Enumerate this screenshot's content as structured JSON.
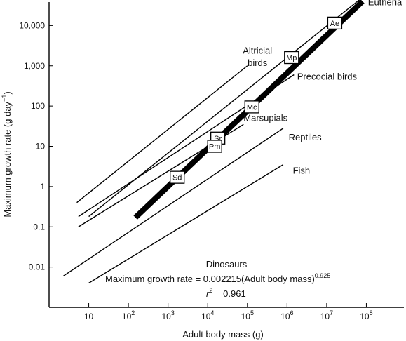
{
  "chart_data": {
    "type": "line",
    "xscale": "log",
    "yscale": "log",
    "xlabel": "Adult body mass (g)",
    "ylabel": "Maximum growth rate (g day",
    "ylabel_sup": "−1",
    "ylabel_close": ")",
    "xlim": [
      1,
      1000000000
    ],
    "ylim": [
      0.001,
      100000
    ],
    "x_ticks": [
      {
        "value": 10,
        "base": "10",
        "exp": ""
      },
      {
        "value": 100,
        "base": "10",
        "exp": "2"
      },
      {
        "value": 1000,
        "base": "10",
        "exp": "3"
      },
      {
        "value": 10000,
        "base": "10",
        "exp": "4"
      },
      {
        "value": 100000,
        "base": "10",
        "exp": "5"
      },
      {
        "value": 1000000,
        "base": "10",
        "exp": "6"
      },
      {
        "value": 10000000,
        "base": "10",
        "exp": "7"
      },
      {
        "value": 100000000,
        "base": "10",
        "exp": "8"
      }
    ],
    "y_ticks": [
      {
        "value": 0.01,
        "label": "0.01"
      },
      {
        "value": 0.1,
        "label": "0.1"
      },
      {
        "value": 1,
        "label": "1"
      },
      {
        "value": 10,
        "label": "10"
      },
      {
        "value": 100,
        "label": "100"
      },
      {
        "value": 1000,
        "label": "1,000"
      },
      {
        "value": 10000,
        "label": "10,000"
      }
    ],
    "series": [
      {
        "name": "Eutheria",
        "x": [
          10,
          100000000
        ],
        "y": [
          0.18,
          60000
        ],
        "width": 1.4
      },
      {
        "name": "Altricial birds",
        "x": [
          5,
          100000
        ],
        "y": [
          0.4,
          1000
        ],
        "width": 1.4
      },
      {
        "name": "Precocial birds",
        "x": [
          5.5,
          1500000
        ],
        "y": [
          0.18,
          600
        ],
        "width": 1.4
      },
      {
        "name": "Marsupials",
        "x": [
          5.5,
          80000
        ],
        "y": [
          0.1,
          35
        ],
        "width": 1.4
      },
      {
        "name": "Reptiles",
        "x": [
          2.3,
          800000
        ],
        "y": [
          0.006,
          28
        ],
        "width": 1.4
      },
      {
        "name": "Fish",
        "x": [
          10,
          800000
        ],
        "y": [
          0.004,
          3.5
        ],
        "width": 1.4
      },
      {
        "name": "Dinosaurs",
        "x": [
          150,
          80000000
        ],
        "y": [
          0.17,
          40000
        ],
        "width": 8
      }
    ],
    "labels": [
      {
        "key": "eutheria",
        "text": "Eutheria",
        "x": 110000000,
        "y": 32000,
        "anchor": "start"
      },
      {
        "key": "altricial_1",
        "text": "Altricial",
        "x": 180000,
        "y": 2000,
        "anchor": "middle"
      },
      {
        "key": "altricial_2",
        "text": "birds",
        "x": 180000,
        "y": 1000,
        "anchor": "middle"
      },
      {
        "key": "precocial",
        "text": "Precocial birds",
        "x": 1800000,
        "y": 450,
        "anchor": "start"
      },
      {
        "key": "marsupials",
        "text": "Marsupials",
        "x": 80000,
        "y": 42,
        "anchor": "start"
      },
      {
        "key": "reptiles",
        "text": "Reptiles",
        "x": 1100000,
        "y": 14,
        "anchor": "start"
      },
      {
        "key": "fish",
        "text": "Fish",
        "x": 1400000,
        "y": 2.1,
        "anchor": "start"
      }
    ],
    "points": [
      {
        "label": "Ae",
        "x": 16000000,
        "y": 11500
      },
      {
        "label": "Mp",
        "x": 1300000,
        "y": 1600
      },
      {
        "label": "Mc",
        "x": 130000,
        "y": 95
      },
      {
        "label": "Sr",
        "x": 18000,
        "y": 16
      },
      {
        "label": "Pm",
        "x": 15000,
        "y": 10
      },
      {
        "label": "Sd",
        "x": 1700,
        "y": 1.7
      }
    ],
    "annotations": {
      "title": "Dinosaurs",
      "equation_text": "Maximum growth rate = 0.002215(Adult body mass)",
      "equation_exp": "0.925",
      "r2_r": "r",
      "r2_sup": "2",
      "r2_value": " = 0.961"
    }
  }
}
